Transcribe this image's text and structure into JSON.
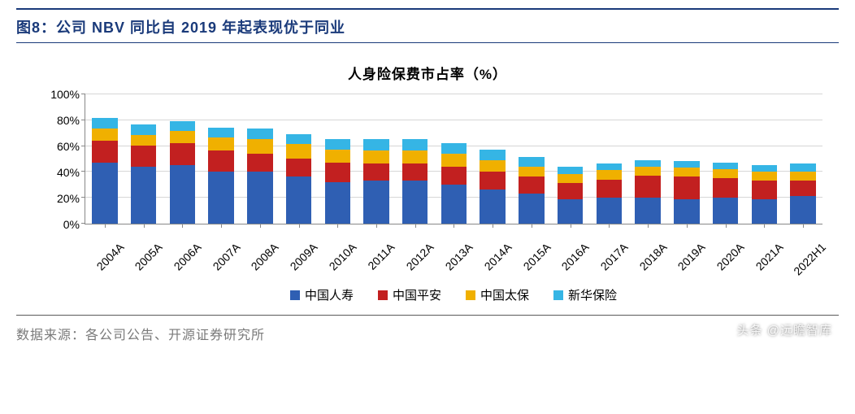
{
  "figure": {
    "header": "图8：公司 NBV 同比自 2019 年起表现优于同业",
    "header_color": "#1a3a7a",
    "header_fontsize": 18
  },
  "chart": {
    "type": "stacked-bar",
    "title": "人身险保费市占率（%）",
    "title_fontsize": 17,
    "background_color": "#ffffff",
    "grid_color": "#d6d6d6",
    "axis_color": "#888888",
    "y": {
      "min": 0,
      "max": 100,
      "step": 20,
      "suffix": "%",
      "ticks": [
        0,
        20,
        40,
        60,
        80,
        100
      ]
    },
    "categories": [
      "2004A",
      "2005A",
      "2006A",
      "2007A",
      "2008A",
      "2009A",
      "2010A",
      "2011A",
      "2012A",
      "2013A",
      "2014A",
      "2015A",
      "2016A",
      "2017A",
      "2018A",
      "2019A",
      "2020A",
      "2021A",
      "2022H1"
    ],
    "series": [
      {
        "name": "中国人寿",
        "color": "#2f5fb3",
        "values": [
          47,
          44,
          45,
          40,
          40,
          36,
          32,
          33,
          33,
          30,
          26,
          23,
          19,
          20,
          20,
          19,
          20,
          19,
          21
        ]
      },
      {
        "name": "中国平安",
        "color": "#c22020",
        "values": [
          17,
          16,
          17,
          16,
          14,
          14,
          15,
          13,
          13,
          14,
          14,
          13,
          12,
          14,
          17,
          17,
          15,
          14,
          12
        ]
      },
      {
        "name": "中国太保",
        "color": "#f0b000",
        "values": [
          9,
          8,
          9,
          10,
          11,
          11,
          10,
          10,
          10,
          10,
          9,
          8,
          7,
          7,
          7,
          7,
          7,
          7,
          7
        ]
      },
      {
        "name": "新华保险",
        "color": "#35b5e5",
        "values": [
          8,
          8,
          8,
          8,
          8,
          8,
          8,
          9,
          9,
          8,
          8,
          7,
          6,
          5,
          5,
          5,
          5,
          5,
          6
        ]
      }
    ],
    "bar_width": 0.66,
    "label_fontsize": 14
  },
  "source": {
    "label": "数据来源：各公司公告、开源证券研究所",
    "color": "#7a7a7a",
    "fontsize": 16
  },
  "watermark": "头条 @远瞻智库"
}
